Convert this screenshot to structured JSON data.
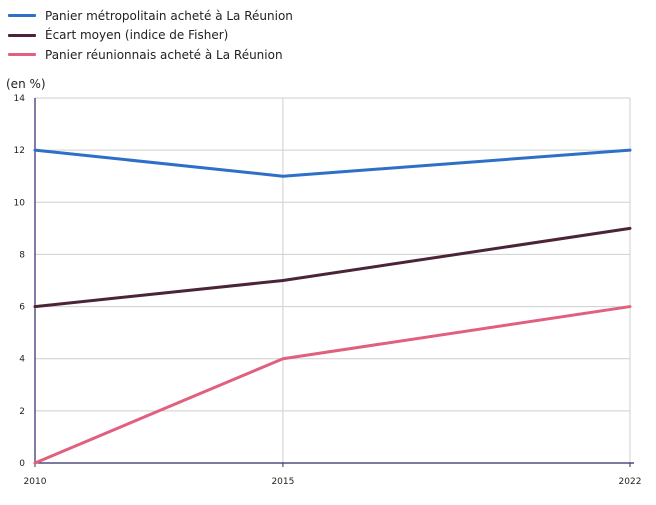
{
  "chart_data": {
    "type": "line",
    "unit_label": "(en %)",
    "x": [
      2010,
      2015,
      2022
    ],
    "ylim": [
      0,
      14
    ],
    "yticks": [
      0,
      2,
      4,
      6,
      8,
      10,
      12,
      14
    ],
    "grid": true,
    "legend_position": "top-left",
    "series": [
      {
        "name": "Panier métropolitain acheté à La Réunion",
        "color": "#2e6fc7",
        "values": [
          12,
          11,
          12
        ]
      },
      {
        "name": "Écart moyen (indice de Fisher)",
        "color": "#4b2438",
        "values": [
          6,
          7,
          9
        ]
      },
      {
        "name": "Panier réunionnais acheté à La Réunion",
        "color": "#e0607e",
        "values": [
          0,
          4,
          6
        ]
      }
    ]
  }
}
